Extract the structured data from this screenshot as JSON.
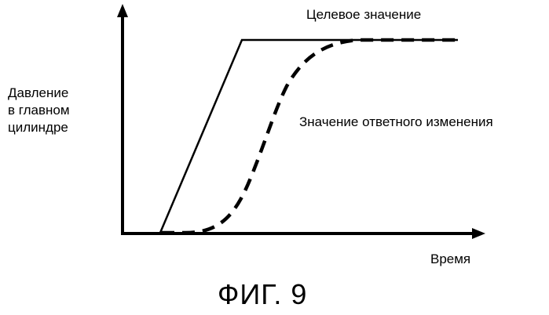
{
  "diagram": {
    "y_axis_label_lines": [
      "Давление",
      "в главном",
      "цилиндре"
    ],
    "x_axis_label": "Время",
    "target_label": "Целевое значение",
    "response_label": "Значение ответного изменения",
    "figure_caption": "ФИГ. 9",
    "line_color": "#000000"
  }
}
